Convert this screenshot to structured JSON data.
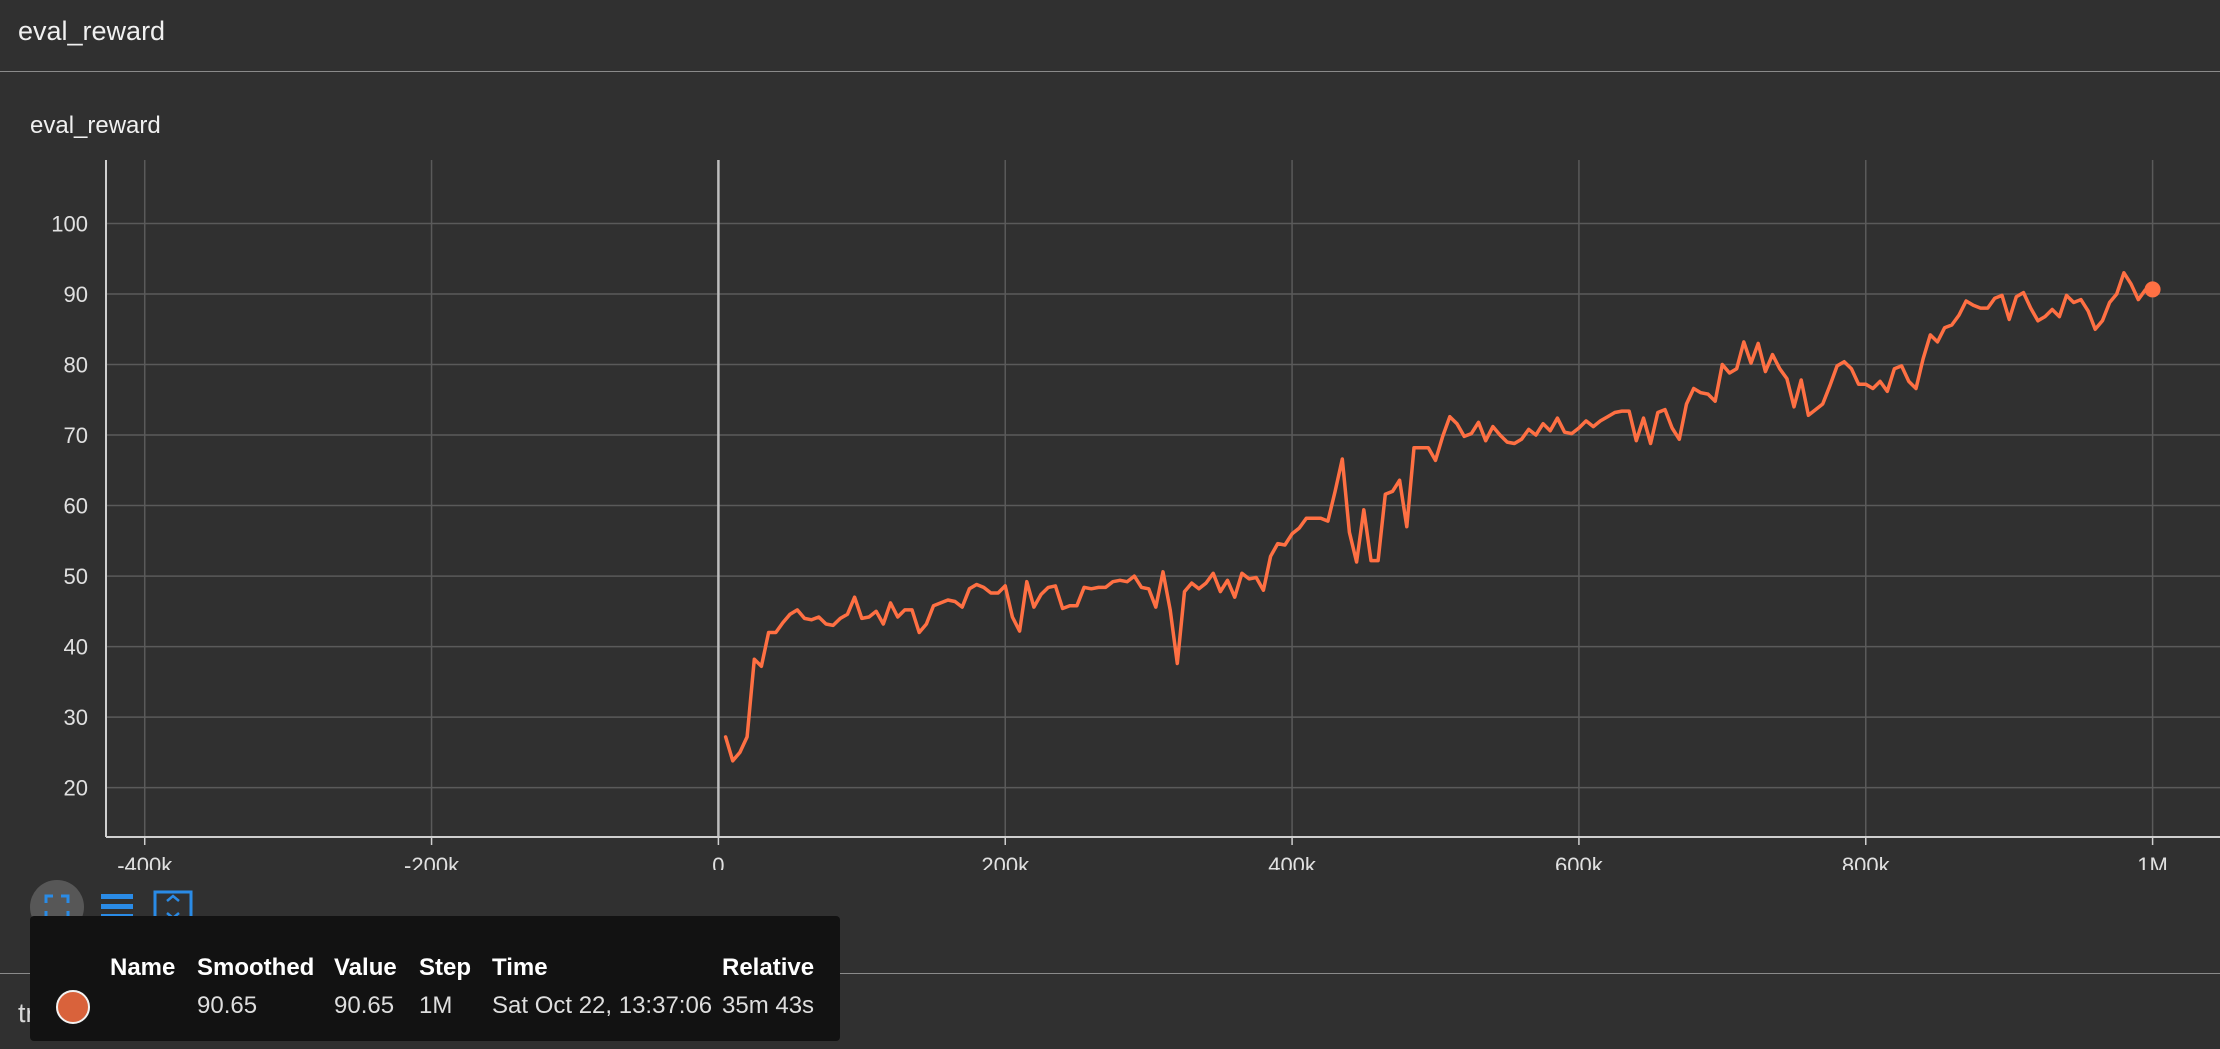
{
  "section": {
    "title": "eval_reward"
  },
  "next_section": {
    "title": "train_reward"
  },
  "card": {
    "title": "eval_reward"
  },
  "colors": {
    "series": "#ff7043",
    "grid": "#5a5a5a",
    "axis": "#cfcfcf",
    "background": "#303030"
  },
  "toolbar": {
    "icons": [
      "fullscreen-icon",
      "legend-list-icon",
      "fit-domain-icon"
    ]
  },
  "chart_data": {
    "type": "line",
    "title": "eval_reward",
    "xlabel": "",
    "ylabel": "",
    "xlim": [
      -427000,
      1047000
    ],
    "ylim": [
      13,
      109
    ],
    "x_ticks": [
      -400000,
      -200000,
      0,
      200000,
      400000,
      600000,
      800000,
      1000000
    ],
    "x_tick_labels": [
      "-400k",
      "-200k",
      "0",
      "200k",
      "400k",
      "600k",
      "800k",
      "1M"
    ],
    "y_ticks": [
      20,
      30,
      40,
      50,
      60,
      70,
      80,
      90,
      100
    ],
    "y_tick_labels": [
      "20",
      "30",
      "40",
      "50",
      "60",
      "70",
      "80",
      "90",
      "100"
    ],
    "grid": true,
    "series": [
      {
        "x": [
          5000,
          10000,
          15000,
          20000,
          25000,
          30000,
          35000,
          40000,
          45000,
          50000,
          55000,
          60000,
          65000,
          70000,
          75000,
          80000,
          85000,
          90000,
          95000,
          100000,
          105000,
          110000,
          115000,
          120000,
          125000,
          130000,
          135000,
          140000,
          145000,
          150000,
          155000,
          160000,
          165000,
          170000,
          175000,
          180000,
          185000,
          190000,
          195000,
          200000,
          205000,
          210000,
          215000,
          220000,
          225000,
          230000,
          235000,
          240000,
          245000,
          250000,
          255000,
          260000,
          265000,
          270000,
          275000,
          280000,
          285000,
          290000,
          295000,
          300000,
          305000,
          310000,
          315000,
          320000,
          325000,
          330000,
          335000,
          340000,
          345000,
          350000,
          355000,
          360000,
          365000,
          370000,
          375000,
          380000,
          385000,
          390000,
          395000,
          400000,
          405000,
          410000,
          415000,
          420000,
          425000,
          430000,
          435000,
          440000,
          445000,
          450000,
          455000,
          460000,
          465000,
          470000,
          475000,
          480000,
          485000,
          490000,
          495000,
          500000,
          505000,
          510000,
          515000,
          520000,
          525000,
          530000,
          535000,
          540000,
          545000,
          550000,
          555000,
          560000,
          565000,
          570000,
          575000,
          580000,
          585000,
          590000,
          595000,
          600000,
          605000,
          610000,
          615000,
          620000,
          625000,
          630000,
          635000,
          640000,
          645000,
          650000,
          655000,
          660000,
          665000,
          670000,
          675000,
          680000,
          685000,
          690000,
          695000,
          700000,
          705000,
          710000,
          715000,
          720000,
          725000,
          730000,
          735000,
          740000,
          745000,
          750000,
          755000,
          760000,
          765000,
          770000,
          775000,
          780000,
          785000,
          790000,
          795000,
          800000,
          805000,
          810000,
          815000,
          820000,
          825000,
          830000,
          835000,
          840000,
          845000,
          850000,
          855000,
          860000,
          865000,
          870000,
          875000,
          880000,
          885000,
          890000,
          895000,
          900000,
          905000,
          910000,
          915000,
          920000,
          925000,
          930000,
          935000,
          940000,
          945000,
          950000,
          955000,
          960000,
          965000,
          970000,
          975000,
          980000,
          985000,
          990000,
          995000,
          1000000
        ],
        "values": [
          27.2,
          23.8,
          25.0,
          27.2,
          38.2,
          37.2,
          42.0,
          42.0,
          43.4,
          44.6,
          45.2,
          44.0,
          43.8,
          44.2,
          43.2,
          43.0,
          44.0,
          44.6,
          47.0,
          44.0,
          44.2,
          45.0,
          43.2,
          46.2,
          44.2,
          45.2,
          45.2,
          42.0,
          43.2,
          45.8,
          46.2,
          46.6,
          46.4,
          45.6,
          48.2,
          48.8,
          48.4,
          47.6,
          47.6,
          48.6,
          44.2,
          42.2,
          49.2,
          45.6,
          47.4,
          48.4,
          48.6,
          45.4,
          45.8,
          45.8,
          48.4,
          48.2,
          48.4,
          48.4,
          49.2,
          49.4,
          49.2,
          50.0,
          48.4,
          48.2,
          45.6,
          50.6,
          45.2,
          37.6,
          47.8,
          49.0,
          48.2,
          49.0,
          50.4,
          47.8,
          49.4,
          47.0,
          50.4,
          49.6,
          49.8,
          48.0,
          52.8,
          54.6,
          54.4,
          56.0,
          56.8,
          58.2,
          58.2,
          58.2,
          57.8,
          62.0,
          66.6,
          56.2,
          52.0,
          59.4,
          52.2,
          52.2,
          61.6,
          62.0,
          63.6,
          57.0,
          68.2,
          68.2,
          68.2,
          66.4,
          69.8,
          72.6,
          71.6,
          69.8,
          70.2,
          71.8,
          69.2,
          71.2,
          70.0,
          69.0,
          68.8,
          69.4,
          70.8,
          70.0,
          71.6,
          70.6,
          72.4,
          70.4,
          70.2,
          71.0,
          72.0,
          71.2,
          72.0,
          72.6,
          73.2,
          73.4,
          73.4,
          69.2,
          72.4,
          68.8,
          73.2,
          73.6,
          71.0,
          69.4,
          74.4,
          76.6,
          76.0,
          75.8,
          74.8,
          80.0,
          78.8,
          79.4,
          83.2,
          80.2,
          83.0,
          79.0,
          81.4,
          79.4,
          78.0,
          74.0,
          77.8,
          72.8,
          73.6,
          74.4,
          77.0,
          79.8,
          80.4,
          79.4,
          77.2,
          77.2,
          76.6,
          77.6,
          76.2,
          79.4,
          79.8,
          77.6,
          76.6,
          80.8,
          84.2,
          83.2,
          85.2,
          85.6,
          87.0,
          89.0,
          88.4,
          88.0,
          88.0,
          89.4,
          89.8,
          86.4,
          89.6,
          90.2,
          88.0,
          86.2,
          86.8,
          87.8,
          86.8,
          89.8,
          88.8,
          89.2,
          87.6,
          85.0,
          86.2,
          88.8,
          90.0,
          93.0,
          91.4,
          89.2,
          90.6,
          90.65
        ]
      }
    ]
  },
  "tooltip": {
    "headers": {
      "name": "Name",
      "smoothed": "Smoothed",
      "value": "Value",
      "step": "Step",
      "time": "Time",
      "relative": "Relative"
    },
    "row": {
      "name": "",
      "smoothed": "90.65",
      "value": "90.65",
      "step": "1M",
      "time": "Sat Oct 22, 13:37:06",
      "relative": "35m 43s"
    }
  }
}
